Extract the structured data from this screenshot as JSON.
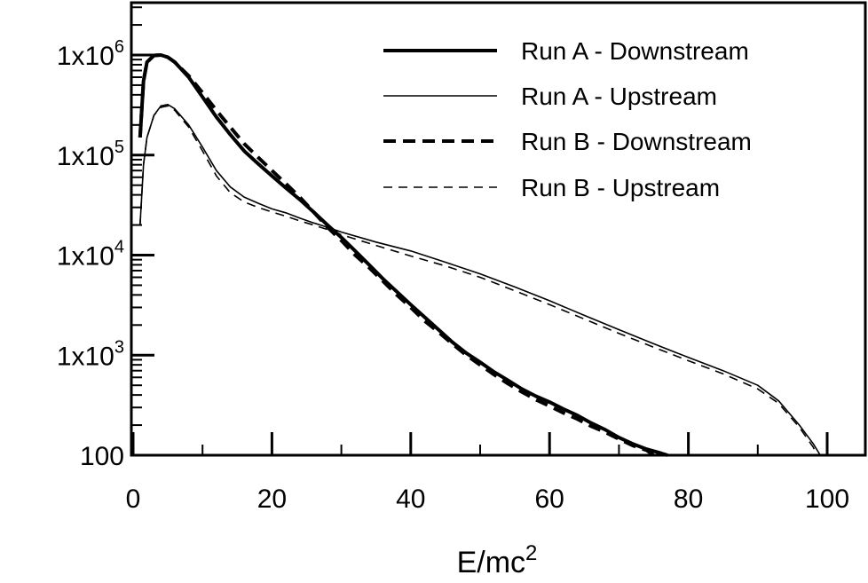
{
  "chart_data": {
    "type": "line",
    "xlabel": "E/mc",
    "xlabel_sup": "2",
    "xlim": [
      0,
      100
    ],
    "ylim": [
      100,
      3000000
    ],
    "yscale": "log",
    "grid": false,
    "legend_position": "top-right",
    "x_ticks": [
      {
        "value": 0,
        "label": "0"
      },
      {
        "value": 20,
        "label": "20"
      },
      {
        "value": 40,
        "label": "40"
      },
      {
        "value": 60,
        "label": "60"
      },
      {
        "value": 80,
        "label": "80"
      },
      {
        "value": 100,
        "label": "100"
      }
    ],
    "y_ticks": [
      {
        "value": 100,
        "base": "100",
        "exp": ""
      },
      {
        "value": 1000,
        "base": "1x10",
        "exp": "3"
      },
      {
        "value": 10000,
        "base": "1x10",
        "exp": "4"
      },
      {
        "value": 100000,
        "base": "1x10",
        "exp": "5"
      },
      {
        "value": 1000000,
        "base": "1x10",
        "exp": "6"
      }
    ],
    "series": [
      {
        "name": "Run A - Downstream",
        "style": "solid-thick",
        "points": [
          [
            1,
            150000
          ],
          [
            1.5,
            550000
          ],
          [
            2,
            850000
          ],
          [
            3,
            990000
          ],
          [
            4,
            1000000
          ],
          [
            5,
            950000
          ],
          [
            6,
            850000
          ],
          [
            8,
            600000
          ],
          [
            10,
            380000
          ],
          [
            12,
            240000
          ],
          [
            14,
            160000
          ],
          [
            16,
            110000
          ],
          [
            18,
            82000
          ],
          [
            20,
            62000
          ],
          [
            22,
            47000
          ],
          [
            24,
            36000
          ],
          [
            26,
            27000
          ],
          [
            28,
            20000
          ],
          [
            30,
            15000
          ],
          [
            32,
            11000
          ],
          [
            34,
            8000
          ],
          [
            36,
            5800
          ],
          [
            38,
            4300
          ],
          [
            40,
            3200
          ],
          [
            42,
            2400
          ],
          [
            44,
            1800
          ],
          [
            46,
            1350
          ],
          [
            48,
            1050
          ],
          [
            50,
            850
          ],
          [
            52,
            680
          ],
          [
            54,
            560
          ],
          [
            56,
            460
          ],
          [
            58,
            390
          ],
          [
            60,
            340
          ],
          [
            62,
            290
          ],
          [
            64,
            250
          ],
          [
            66,
            210
          ],
          [
            68,
            180
          ],
          [
            70,
            150
          ],
          [
            72,
            130
          ],
          [
            74,
            115
          ],
          [
            76,
            105
          ],
          [
            77,
            100
          ]
        ]
      },
      {
        "name": "Run A - Upstream",
        "style": "solid-thin",
        "points": [
          [
            1,
            20000
          ],
          [
            1.5,
            80000
          ],
          [
            2,
            150000
          ],
          [
            3,
            250000
          ],
          [
            4,
            310000
          ],
          [
            5,
            320000
          ],
          [
            6,
            290000
          ],
          [
            8,
            200000
          ],
          [
            10,
            120000
          ],
          [
            12,
            70000
          ],
          [
            14,
            48000
          ],
          [
            16,
            38000
          ],
          [
            18,
            33000
          ],
          [
            20,
            29000
          ],
          [
            22,
            26500
          ],
          [
            24,
            23500
          ],
          [
            26,
            21000
          ],
          [
            28,
            19000
          ],
          [
            30,
            17000
          ],
          [
            35,
            13500
          ],
          [
            40,
            11000
          ],
          [
            45,
            8500
          ],
          [
            50,
            6500
          ],
          [
            55,
            4800
          ],
          [
            60,
            3500
          ],
          [
            65,
            2500
          ],
          [
            70,
            1800
          ],
          [
            75,
            1300
          ],
          [
            80,
            950
          ],
          [
            85,
            700
          ],
          [
            90,
            500
          ],
          [
            93,
            350
          ],
          [
            96,
            200
          ],
          [
            98,
            130
          ],
          [
            99,
            100
          ]
        ]
      },
      {
        "name": "Run B - Downstream",
        "style": "dashed-thick",
        "points": [
          [
            1,
            150000
          ],
          [
            1.5,
            550000
          ],
          [
            2,
            850000
          ],
          [
            3,
            990000
          ],
          [
            4,
            1000000
          ],
          [
            5,
            950000
          ],
          [
            6,
            850000
          ],
          [
            8,
            620000
          ],
          [
            10,
            420000
          ],
          [
            12,
            280000
          ],
          [
            14,
            190000
          ],
          [
            16,
            130000
          ],
          [
            18,
            95000
          ],
          [
            20,
            70000
          ],
          [
            22,
            52000
          ],
          [
            24,
            38000
          ],
          [
            26,
            27000
          ],
          [
            28,
            19000
          ],
          [
            30,
            14000
          ],
          [
            32,
            10000
          ],
          [
            34,
            7500
          ],
          [
            36,
            5500
          ],
          [
            38,
            4000
          ],
          [
            40,
            3000
          ],
          [
            42,
            2200
          ],
          [
            44,
            1700
          ],
          [
            46,
            1300
          ],
          [
            48,
            1000
          ],
          [
            50,
            800
          ],
          [
            52,
            640
          ],
          [
            54,
            520
          ],
          [
            56,
            430
          ],
          [
            58,
            360
          ],
          [
            60,
            310
          ],
          [
            62,
            265
          ],
          [
            64,
            230
          ],
          [
            66,
            195
          ],
          [
            68,
            170
          ],
          [
            70,
            145
          ],
          [
            72,
            125
          ],
          [
            74,
            112
          ],
          [
            75,
            100
          ]
        ]
      },
      {
        "name": "Run B - Upstream",
        "style": "dashed-thin",
        "points": [
          [
            1,
            20000
          ],
          [
            1.5,
            80000
          ],
          [
            2,
            150000
          ],
          [
            3,
            250000
          ],
          [
            4,
            300000
          ],
          [
            5,
            310000
          ],
          [
            6,
            280000
          ],
          [
            8,
            190000
          ],
          [
            10,
            110000
          ],
          [
            12,
            62000
          ],
          [
            14,
            42000
          ],
          [
            16,
            34000
          ],
          [
            18,
            30000
          ],
          [
            20,
            27000
          ],
          [
            22,
            24500
          ],
          [
            24,
            22000
          ],
          [
            26,
            20000
          ],
          [
            28,
            18000
          ],
          [
            30,
            16000
          ],
          [
            35,
            12500
          ],
          [
            40,
            9800
          ],
          [
            45,
            7800
          ],
          [
            50,
            6000
          ],
          [
            55,
            4400
          ],
          [
            60,
            3200
          ],
          [
            65,
            2300
          ],
          [
            70,
            1650
          ],
          [
            75,
            1200
          ],
          [
            80,
            880
          ],
          [
            85,
            650
          ],
          [
            90,
            460
          ],
          [
            93,
            330
          ],
          [
            96,
            190
          ],
          [
            98,
            120
          ],
          [
            98.5,
            100
          ]
        ]
      }
    ]
  }
}
